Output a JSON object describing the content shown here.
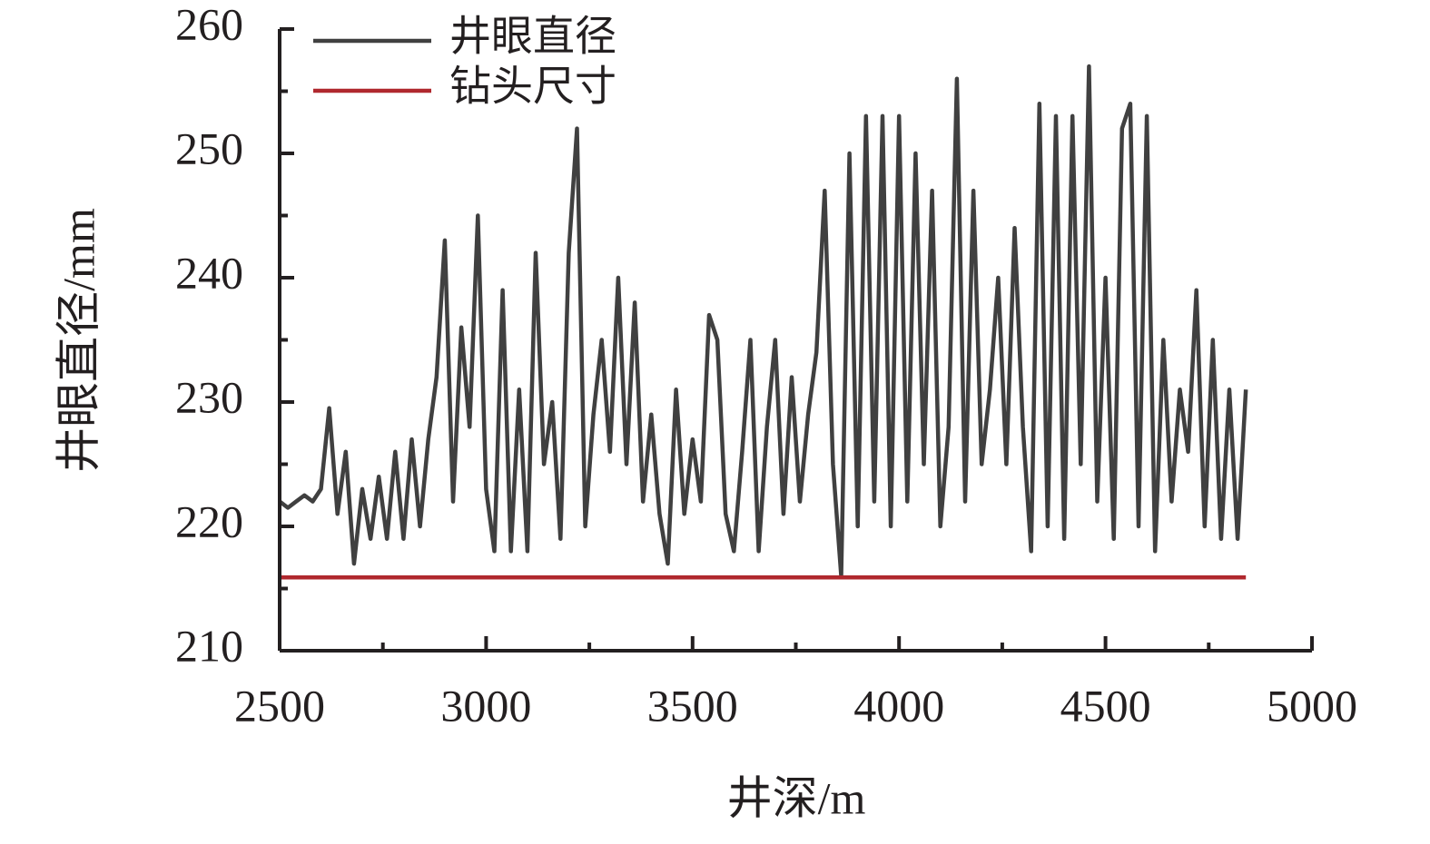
{
  "chart_data": {
    "type": "line",
    "xlabel": "井深/m",
    "ylabel": "井眼直径/mm",
    "xlim": [
      2500,
      5000
    ],
    "xticks": [
      2500,
      3000,
      3500,
      4000,
      4500,
      5000
    ],
    "xminorticks": [
      2750,
      3250,
      3750,
      4250,
      4750
    ],
    "ylim": [
      210,
      260
    ],
    "yticks": [
      210,
      220,
      230,
      240,
      250,
      260
    ],
    "yminorticks": [
      215,
      225,
      235,
      245,
      255
    ],
    "legend": "upper left",
    "series": [
      {
        "name": "井眼直径",
        "color": "#404040",
        "x": [
          2500,
          2520,
          2540,
          2560,
          2580,
          2600,
          2620,
          2640,
          2660,
          2680,
          2700,
          2720,
          2740,
          2760,
          2780,
          2800,
          2820,
          2840,
          2860,
          2880,
          2900,
          2920,
          2940,
          2960,
          2980,
          3000,
          3020,
          3040,
          3060,
          3080,
          3100,
          3120,
          3140,
          3160,
          3180,
          3200,
          3220,
          3240,
          3260,
          3280,
          3300,
          3320,
          3340,
          3360,
          3380,
          3400,
          3420,
          3440,
          3460,
          3480,
          3500,
          3520,
          3540,
          3560,
          3580,
          3600,
          3620,
          3640,
          3660,
          3680,
          3700,
          3720,
          3740,
          3760,
          3780,
          3800,
          3820,
          3840,
          3860,
          3880,
          3900,
          3920,
          3940,
          3960,
          3980,
          4000,
          4020,
          4040,
          4060,
          4080,
          4100,
          4120,
          4140,
          4160,
          4180,
          4200,
          4220,
          4240,
          4260,
          4280,
          4300,
          4320,
          4340,
          4360,
          4380,
          4400,
          4420,
          4440,
          4460,
          4480,
          4500,
          4520,
          4540,
          4560,
          4580,
          4600,
          4620,
          4640,
          4660,
          4680,
          4700,
          4720,
          4740,
          4760,
          4780,
          4800,
          4820,
          4840
        ],
        "values": [
          222,
          221.5,
          222,
          222.5,
          222,
          223,
          229.5,
          221,
          226,
          217,
          223,
          219,
          224,
          219,
          226,
          219,
          227,
          220,
          227,
          232,
          243,
          222,
          236,
          228,
          245,
          223,
          218,
          239,
          218,
          231,
          218,
          242,
          225,
          230,
          219,
          242,
          252,
          220,
          229,
          235,
          226,
          240,
          225,
          238,
          222,
          229,
          221,
          217,
          231,
          221,
          227,
          222,
          237,
          235,
          221,
          218,
          226,
          235,
          218,
          228,
          235,
          221,
          232,
          222,
          229,
          234,
          247,
          225,
          216,
          250,
          220,
          253,
          222,
          253,
          220,
          253,
          222,
          250,
          225,
          247,
          220,
          228,
          256,
          222,
          247,
          225,
          231,
          240,
          225,
          244,
          228,
          218,
          254,
          220,
          253,
          219,
          253,
          225,
          257,
          222,
          240,
          219,
          252,
          254,
          220,
          253,
          218,
          235,
          222,
          231,
          226,
          239,
          220,
          235,
          219,
          231,
          219,
          231
        ]
      },
      {
        "name": "钻头尺寸",
        "color": "#b0282e",
        "x": [
          2500,
          4840
        ],
        "values": [
          215.9,
          215.9
        ]
      }
    ]
  }
}
